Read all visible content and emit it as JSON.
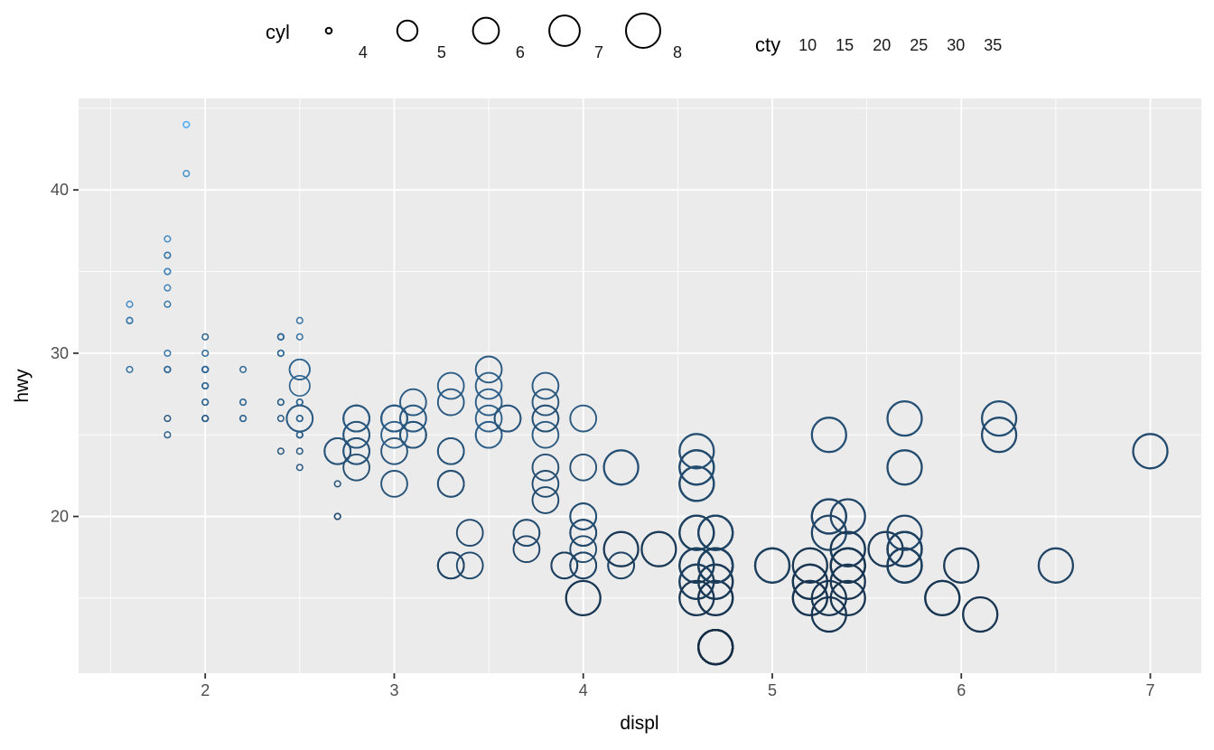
{
  "figure": {
    "background": "#FFFFFF",
    "panel_background": "#EBEBEB",
    "grid_color": "#FFFFFF",
    "tick_color": "#333333",
    "tick_label_color": "#4D4D4D"
  },
  "legend_cyl": {
    "title": "cyl",
    "key_color": "#000000",
    "entries": [
      {
        "value": 4,
        "label": "4"
      },
      {
        "value": 5,
        "label": "5"
      },
      {
        "value": 6,
        "label": "6"
      },
      {
        "value": 7,
        "label": "7"
      },
      {
        "value": 8,
        "label": "8"
      }
    ]
  },
  "legend_cty": {
    "title": "cty",
    "labels": [
      "10",
      "15",
      "20",
      "25",
      "30",
      "35"
    ]
  },
  "axes": {
    "x": {
      "label": "displ",
      "ticks": [
        2,
        3,
        4,
        5,
        6,
        7
      ],
      "minor": [
        1.5,
        2.5,
        3.5,
        4.5,
        5.5,
        6.5
      ],
      "domain": [
        1.33,
        7.27
      ]
    },
    "y": {
      "label": "hwy",
      "ticks": [
        20,
        30,
        40
      ],
      "minor": [
        15,
        25,
        35,
        45
      ],
      "domain": [
        10.4,
        45.6
      ]
    }
  },
  "chart_data": {
    "type": "scatter",
    "title": "",
    "xlabel": "displ",
    "ylabel": "hwy",
    "size_var": "cyl",
    "color_var": "cty",
    "grid": true,
    "legend_position": "top",
    "color_scale": {
      "low": "#132B43",
      "high": "#56B1F7",
      "domain": [
        9,
        35
      ]
    },
    "size_scale": {
      "domain": [
        4,
        8
      ],
      "radius_px": [
        3.3,
        19.0
      ]
    },
    "xlim": [
      1.33,
      7.27
    ],
    "ylim": [
      10.4,
      45.6
    ],
    "point_format": [
      "displ",
      "hwy",
      "cyl",
      "cty"
    ],
    "points": [
      [
        1.8,
        29,
        4,
        18
      ],
      [
        1.8,
        29,
        4,
        21
      ],
      [
        2,
        31,
        4,
        20
      ],
      [
        2,
        30,
        4,
        21
      ],
      [
        2.8,
        26,
        6,
        16
      ],
      [
        2.8,
        26,
        6,
        18
      ],
      [
        3.1,
        27,
        6,
        18
      ],
      [
        1.8,
        26,
        4,
        18
      ],
      [
        1.8,
        25,
        4,
        20
      ],
      [
        2,
        28,
        4,
        20
      ],
      [
        2,
        27,
        4,
        19
      ],
      [
        2.8,
        25,
        6,
        15
      ],
      [
        2.8,
        25,
        6,
        17
      ],
      [
        3.1,
        25,
        6,
        17
      ],
      [
        3.1,
        25,
        6,
        15
      ],
      [
        2.8,
        24,
        6,
        15
      ],
      [
        3.1,
        25,
        6,
        17
      ],
      [
        4.2,
        23,
        8,
        16
      ],
      [
        5.3,
        20,
        8,
        14
      ],
      [
        5.3,
        15,
        8,
        11
      ],
      [
        5.3,
        20,
        8,
        14
      ],
      [
        5.7,
        17,
        8,
        13
      ],
      [
        6,
        17,
        8,
        12
      ],
      [
        5.7,
        26,
        8,
        16
      ],
      [
        5.7,
        23,
        8,
        15
      ],
      [
        6.2,
        26,
        8,
        16
      ],
      [
        6.2,
        25,
        8,
        15
      ],
      [
        7,
        24,
        8,
        15
      ],
      [
        5.3,
        19,
        8,
        14
      ],
      [
        5.3,
        14,
        8,
        11
      ],
      [
        5.7,
        17,
        8,
        13
      ],
      [
        6.5,
        17,
        8,
        14
      ],
      [
        2.4,
        27,
        4,
        19
      ],
      [
        2.4,
        30,
        4,
        22
      ],
      [
        3.1,
        26,
        6,
        18
      ],
      [
        3.5,
        29,
        6,
        18
      ],
      [
        3.6,
        26,
        6,
        17
      ],
      [
        2.4,
        24,
        4,
        18
      ],
      [
        3,
        24,
        6,
        17
      ],
      [
        3.3,
        22,
        6,
        16
      ],
      [
        3.3,
        22,
        6,
        16
      ],
      [
        3.3,
        24,
        6,
        17
      ],
      [
        3.3,
        24,
        6,
        17
      ],
      [
        3.3,
        17,
        6,
        11
      ],
      [
        3.8,
        22,
        6,
        15
      ],
      [
        3.8,
        21,
        6,
        15
      ],
      [
        3.8,
        23,
        6,
        16
      ],
      [
        4,
        23,
        6,
        16
      ],
      [
        3.7,
        19,
        6,
        15
      ],
      [
        3.7,
        18,
        6,
        14
      ],
      [
        3.9,
        17,
        6,
        13
      ],
      [
        3.9,
        17,
        6,
        14
      ],
      [
        4.7,
        19,
        8,
        14
      ],
      [
        4.7,
        19,
        8,
        14
      ],
      [
        4.7,
        12,
        8,
        9
      ],
      [
        5.2,
        17,
        8,
        11
      ],
      [
        5.2,
        15,
        8,
        11
      ],
      [
        3.9,
        17,
        6,
        13
      ],
      [
        4.7,
        17,
        8,
        13
      ],
      [
        4.7,
        12,
        8,
        9
      ],
      [
        4.7,
        17,
        8,
        13
      ],
      [
        5.2,
        16,
        8,
        11
      ],
      [
        5.7,
        18,
        8,
        13
      ],
      [
        5.9,
        15,
        8,
        11
      ],
      [
        4.7,
        16,
        8,
        12
      ],
      [
        4.7,
        12,
        8,
        9
      ],
      [
        4.7,
        17,
        8,
        13
      ],
      [
        4.7,
        17,
        8,
        13
      ],
      [
        4.7,
        16,
        8,
        12
      ],
      [
        4.7,
        12,
        8,
        9
      ],
      [
        5.2,
        15,
        8,
        11
      ],
      [
        5.2,
        16,
        8,
        11
      ],
      [
        5.7,
        17,
        8,
        13
      ],
      [
        5.9,
        15,
        8,
        11
      ],
      [
        4.6,
        17,
        8,
        11
      ],
      [
        5.4,
        17,
        8,
        11
      ],
      [
        5.4,
        18,
        8,
        12
      ],
      [
        4,
        17,
        6,
        14
      ],
      [
        4,
        17,
        6,
        14
      ],
      [
        4,
        19,
        6,
        15
      ],
      [
        4,
        19,
        6,
        13
      ],
      [
        4.6,
        19,
        8,
        13
      ],
      [
        5,
        17,
        8,
        13
      ],
      [
        4.2,
        17,
        6,
        14
      ],
      [
        4.2,
        17,
        6,
        14
      ],
      [
        4.6,
        16,
        8,
        13
      ],
      [
        4.6,
        16,
        8,
        13
      ],
      [
        4.6,
        17,
        8,
        13
      ],
      [
        5.4,
        15,
        8,
        11
      ],
      [
        5.4,
        17,
        8,
        13
      ],
      [
        3.8,
        26,
        6,
        18
      ],
      [
        3.8,
        25,
        6,
        18
      ],
      [
        4,
        26,
        6,
        18
      ],
      [
        4.6,
        23,
        8,
        15
      ],
      [
        4.6,
        22,
        8,
        15
      ],
      [
        4.6,
        23,
        8,
        15
      ],
      [
        4.6,
        22,
        8,
        15
      ],
      [
        4.6,
        24,
        8,
        16
      ],
      [
        5.4,
        20,
        8,
        14
      ],
      [
        1.6,
        33,
        4,
        28
      ],
      [
        1.6,
        32,
        4,
        24
      ],
      [
        1.6,
        32,
        4,
        25
      ],
      [
        1.6,
        29,
        4,
        23
      ],
      [
        1.6,
        32,
        4,
        24
      ],
      [
        1.8,
        34,
        4,
        26
      ],
      [
        1.8,
        36,
        4,
        25
      ],
      [
        1.8,
        36,
        4,
        24
      ],
      [
        2,
        29,
        4,
        21
      ],
      [
        2.4,
        26,
        4,
        18
      ],
      [
        2.4,
        30,
        4,
        21
      ],
      [
        2.4,
        31,
        4,
        21
      ],
      [
        2.4,
        30,
        4,
        21
      ],
      [
        2.5,
        26,
        6,
        18
      ],
      [
        2.5,
        26,
        6,
        18
      ],
      [
        3.3,
        28,
        6,
        19
      ],
      [
        2,
        26,
        4,
        19
      ],
      [
        2,
        29,
        4,
        19
      ],
      [
        2,
        28,
        4,
        19
      ],
      [
        2,
        27,
        4,
        20
      ],
      [
        2.7,
        24,
        6,
        17
      ],
      [
        2.7,
        24,
        6,
        16
      ],
      [
        2.7,
        24,
        6,
        17
      ],
      [
        3,
        22,
        6,
        17
      ],
      [
        3.7,
        19,
        6,
        15
      ],
      [
        4,
        20,
        6,
        15
      ],
      [
        4.7,
        17,
        8,
        14
      ],
      [
        4.7,
        12,
        8,
        9
      ],
      [
        4.7,
        19,
        8,
        14
      ],
      [
        5.7,
        18,
        8,
        13
      ],
      [
        6.1,
        14,
        8,
        11
      ],
      [
        4,
        15,
        8,
        11
      ],
      [
        4.2,
        18,
        8,
        12
      ],
      [
        4.4,
        18,
        8,
        12
      ],
      [
        4.6,
        15,
        8,
        11
      ],
      [
        5.4,
        17,
        8,
        11
      ],
      [
        5.4,
        16,
        8,
        11
      ],
      [
        5.4,
        18,
        8,
        12
      ],
      [
        4,
        17,
        6,
        14
      ],
      [
        4,
        19,
        6,
        13
      ],
      [
        4.6,
        19,
        8,
        13
      ],
      [
        5,
        17,
        8,
        13
      ],
      [
        2.4,
        27,
        4,
        19
      ],
      [
        2.5,
        31,
        4,
        23
      ],
      [
        2.5,
        32,
        4,
        23
      ],
      [
        3.5,
        27,
        6,
        19
      ],
      [
        3.5,
        26,
        6,
        19
      ],
      [
        3.5,
        25,
        6,
        19
      ],
      [
        3,
        26,
        6,
        18
      ],
      [
        3,
        25,
        6,
        19
      ],
      [
        3.5,
        25,
        6,
        19
      ],
      [
        3.3,
        17,
        6,
        14
      ],
      [
        3.3,
        17,
        6,
        14
      ],
      [
        4,
        19,
        6,
        15
      ],
      [
        5.6,
        18,
        8,
        12
      ],
      [
        3.1,
        26,
        6,
        18
      ],
      [
        3.8,
        26,
        6,
        16
      ],
      [
        3.8,
        27,
        6,
        17
      ],
      [
        3.8,
        28,
        6,
        18
      ],
      [
        5.3,
        25,
        8,
        16
      ],
      [
        2.5,
        25,
        4,
        18
      ],
      [
        2.5,
        24,
        4,
        18
      ],
      [
        2.5,
        27,
        4,
        20
      ],
      [
        2.5,
        25,
        4,
        19
      ],
      [
        2.5,
        26,
        4,
        20
      ],
      [
        2.5,
        23,
        4,
        18
      ],
      [
        2.2,
        26,
        4,
        21
      ],
      [
        2.2,
        26,
        4,
        19
      ],
      [
        2.5,
        26,
        4,
        19
      ],
      [
        2.5,
        25,
        4,
        19
      ],
      [
        2.5,
        27,
        4,
        20
      ],
      [
        2.5,
        27,
        4,
        20
      ],
      [
        2.5,
        25,
        4,
        19
      ],
      [
        2.5,
        26,
        4,
        20
      ],
      [
        2.7,
        20,
        4,
        15
      ],
      [
        2.7,
        20,
        4,
        16
      ],
      [
        2.7,
        22,
        4,
        17
      ],
      [
        3.4,
        19,
        6,
        15
      ],
      [
        3.4,
        17,
        6,
        15
      ],
      [
        4,
        20,
        6,
        16
      ],
      [
        4.7,
        15,
        8,
        12
      ],
      [
        2.2,
        27,
        4,
        21
      ],
      [
        2.2,
        29,
        4,
        21
      ],
      [
        2.4,
        31,
        4,
        21
      ],
      [
        2.4,
        31,
        4,
        21
      ],
      [
        3,
        26,
        6,
        18
      ],
      [
        3,
        26,
        6,
        18
      ],
      [
        3.5,
        28,
        6,
        19
      ],
      [
        2.2,
        26,
        4,
        21
      ],
      [
        2.2,
        27,
        4,
        21
      ],
      [
        2.4,
        31,
        4,
        21
      ],
      [
        2.4,
        31,
        4,
        22
      ],
      [
        2.4,
        31,
        4,
        21
      ],
      [
        3,
        26,
        6,
        18
      ],
      [
        3.3,
        27,
        6,
        18
      ],
      [
        1.8,
        30,
        4,
        24
      ],
      [
        1.8,
        33,
        4,
        24
      ],
      [
        1.8,
        35,
        4,
        26
      ],
      [
        1.8,
        37,
        4,
        28
      ],
      [
        1.8,
        35,
        4,
        26
      ],
      [
        4.7,
        15,
        8,
        11
      ],
      [
        5.7,
        18,
        8,
        13
      ],
      [
        4,
        18,
        6,
        15
      ],
      [
        4,
        20,
        6,
        16
      ],
      [
        4.7,
        17,
        8,
        13
      ],
      [
        4.7,
        17,
        8,
        13
      ],
      [
        5.7,
        19,
        8,
        14
      ],
      [
        2,
        29,
        4,
        21
      ],
      [
        2,
        26,
        4,
        19
      ],
      [
        2,
        29,
        4,
        21
      ],
      [
        2,
        29,
        4,
        22
      ],
      [
        2.8,
        24,
        6,
        17
      ],
      [
        1.9,
        44,
        4,
        33
      ],
      [
        2,
        29,
        4,
        21
      ],
      [
        2,
        26,
        4,
        19
      ],
      [
        2,
        29,
        4,
        21
      ],
      [
        2,
        29,
        4,
        22
      ],
      [
        2.5,
        29,
        5,
        21
      ],
      [
        2.5,
        29,
        5,
        21
      ],
      [
        2.8,
        24,
        6,
        17
      ],
      [
        2.8,
        23,
        6,
        16
      ],
      [
        1.9,
        44,
        4,
        35
      ],
      [
        1.9,
        41,
        4,
        29
      ],
      [
        2,
        29,
        4,
        21
      ],
      [
        2,
        26,
        4,
        19
      ],
      [
        2.5,
        28,
        5,
        20
      ],
      [
        2.5,
        29,
        5,
        20
      ],
      [
        1.8,
        29,
        4,
        21
      ],
      [
        1.8,
        29,
        4,
        21
      ],
      [
        2,
        28,
        4,
        21
      ],
      [
        2,
        29,
        4,
        21
      ],
      [
        2.8,
        26,
        6,
        16
      ],
      [
        2.8,
        26,
        6,
        18
      ],
      [
        3.6,
        26,
        6,
        17
      ]
    ]
  }
}
